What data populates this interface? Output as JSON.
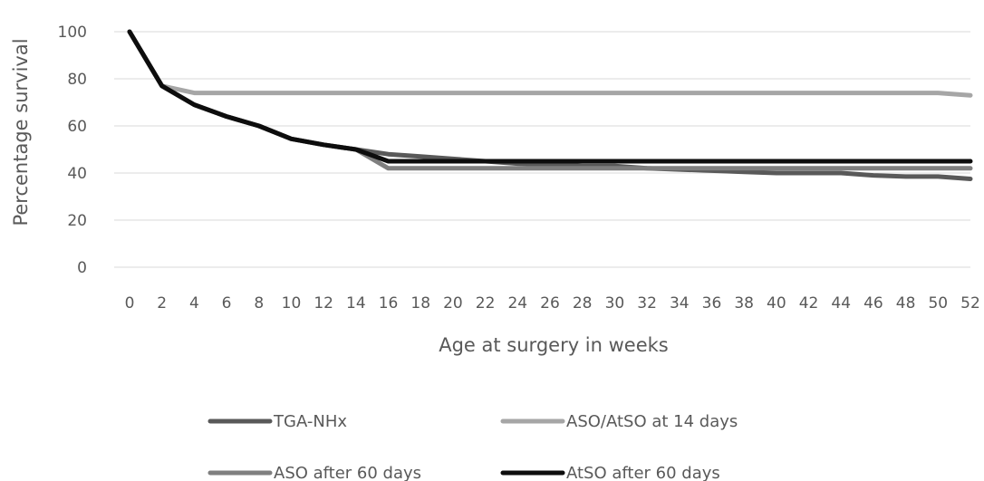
{
  "chart_data": {
    "type": "line",
    "title": "",
    "xlabel": "Age at surgery in weeks",
    "ylabel": "Percentage survival",
    "x": [
      0,
      2,
      4,
      6,
      8,
      10,
      12,
      14,
      16,
      18,
      20,
      22,
      24,
      26,
      28,
      30,
      32,
      34,
      36,
      38,
      40,
      42,
      44,
      46,
      48,
      50,
      52
    ],
    "x_tick_labels": [
      "0",
      "2",
      "4",
      "6",
      "8",
      "10",
      "12",
      "14",
      "16",
      "18",
      "20",
      "22",
      "24",
      "26",
      "28",
      "30",
      "32",
      "34",
      "36",
      "38",
      "40",
      "42",
      "44",
      "46",
      "48",
      "50",
      "52"
    ],
    "y_ticks": [
      "0",
      "20",
      "40",
      "60",
      "80",
      "100"
    ],
    "ylim": [
      0,
      100
    ],
    "grid": true,
    "legend_position": "bottom",
    "series": [
      {
        "name": "TGA-NHx",
        "color": "#595959",
        "values": [
          100,
          77,
          69,
          64,
          60,
          54.5,
          52,
          50,
          48,
          47,
          46,
          45,
          44,
          43.5,
          43,
          43,
          42,
          41.5,
          41,
          40.5,
          40,
          40,
          40,
          39,
          38.5,
          38.5,
          37.5
        ]
      },
      {
        "name": "ASO/AtSO at 14 days",
        "color": "#a6a6a6",
        "values": [
          100,
          77,
          74,
          74,
          74,
          74,
          74,
          74,
          74,
          74,
          74,
          74,
          74,
          74,
          74,
          74,
          74,
          74,
          74,
          74,
          74,
          74,
          74,
          74,
          74,
          74,
          73
        ]
      },
      {
        "name": "ASO after 60 days",
        "color": "#7f7f7f",
        "values": [
          100,
          77,
          69,
          64,
          60,
          54.5,
          52,
          50,
          42,
          42,
          42,
          42,
          42,
          42,
          42,
          42,
          42,
          42,
          42,
          42,
          42,
          42,
          42,
          42,
          42,
          42,
          42
        ]
      },
      {
        "name": "AtSO after 60 days",
        "color": "#0d0d0d",
        "values": [
          100,
          77,
          69,
          64,
          60,
          54.5,
          52,
          50,
          45,
          45,
          45,
          45,
          45,
          45,
          45,
          45,
          45,
          45,
          45,
          45,
          45,
          45,
          45,
          45,
          45,
          45,
          45
        ]
      }
    ],
    "legend_order": [
      0,
      1,
      2,
      3
    ]
  }
}
